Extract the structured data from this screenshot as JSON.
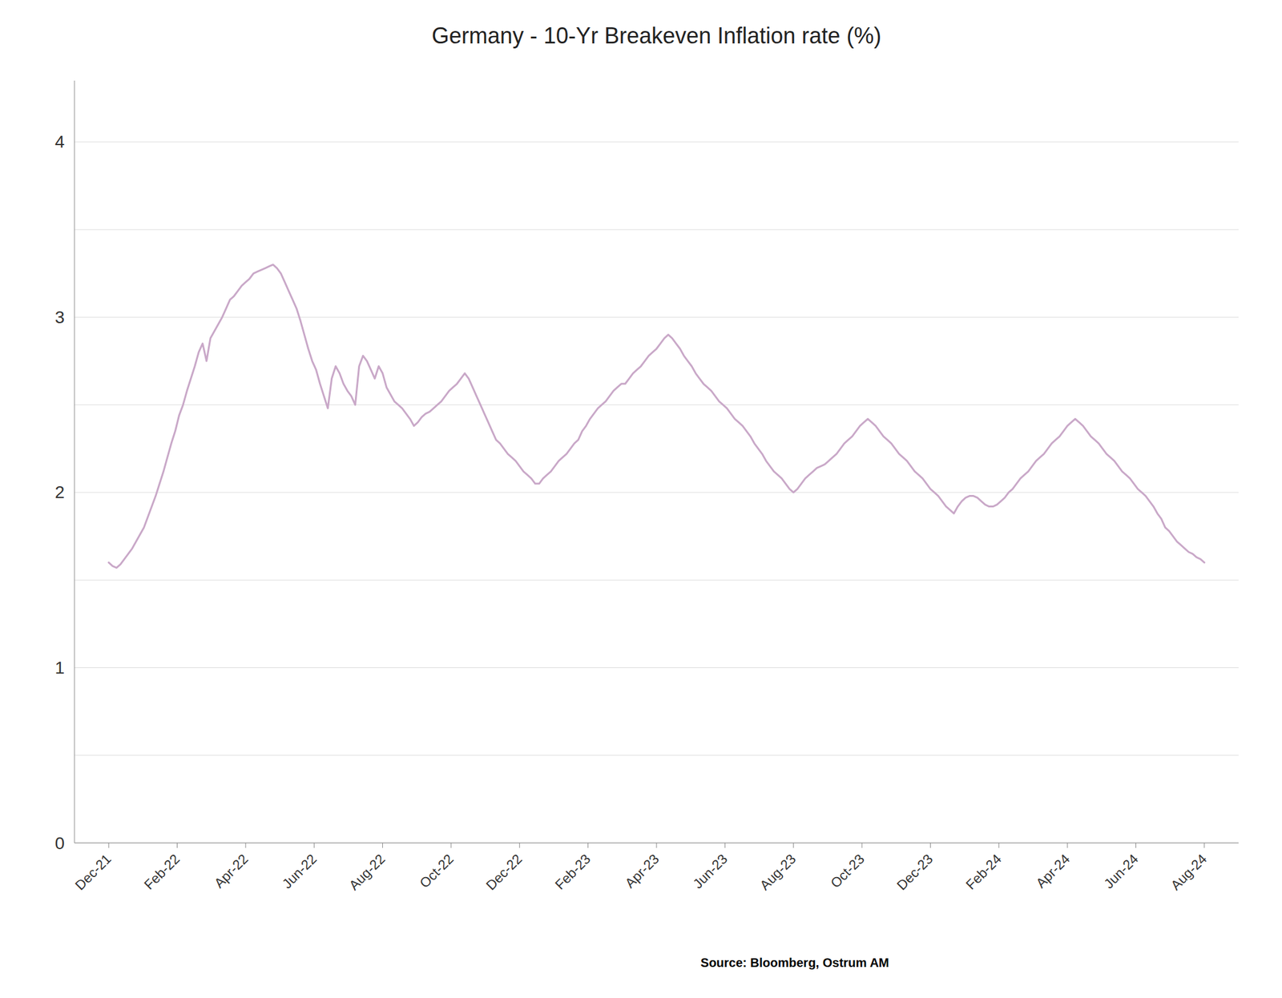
{
  "chart_data": {
    "type": "line",
    "title": "Germany - 10-Yr Breakeven Inflation rate (%)",
    "annotations": [
      "Source: Bloomberg, Ostrum AM"
    ],
    "color": "#c9a8c8",
    "grid": "y",
    "xlim": [
      -0.5,
      16.5
    ],
    "xticks": [
      {
        "value": 0,
        "label": "Dec-21"
      },
      {
        "value": 1,
        "label": "Feb-22"
      },
      {
        "value": 2,
        "label": "Apr-22"
      },
      {
        "value": 3,
        "label": "Jun-22"
      },
      {
        "value": 4,
        "label": "Aug-22"
      },
      {
        "value": 5,
        "label": "Oct-22"
      },
      {
        "value": 6,
        "label": "Dec-22"
      },
      {
        "value": 7,
        "label": "Feb-23"
      },
      {
        "value": 8,
        "label": "Apr-23"
      },
      {
        "value": 9,
        "label": "Jun-23"
      },
      {
        "value": 10,
        "label": "Aug-23"
      },
      {
        "value": 11,
        "label": "Oct-23"
      },
      {
        "value": 12,
        "label": "Dec-23"
      },
      {
        "value": 13,
        "label": "Feb-24"
      },
      {
        "value": 14,
        "label": "Apr-24"
      },
      {
        "value": 15,
        "label": "Jun-24"
      },
      {
        "value": 16,
        "label": "Aug-24"
      }
    ],
    "ylim": [
      0,
      4.35
    ],
    "yticks": [
      0,
      {
        "value": 0.5,
        "label": null
      },
      1,
      {
        "value": 1.5,
        "label": null
      },
      2,
      {
        "value": 2.5,
        "label": null
      },
      3,
      {
        "value": 3.5,
        "label": null
      },
      4
    ],
    "x": [
      0,
      0.057143,
      0.114286,
      0.171429,
      0.228571,
      0.285714,
      0.342857,
      0.4,
      0.457143,
      0.514286,
      0.571429,
      0.628571,
      0.685714,
      0.742857,
      0.8,
      0.857143,
      0.914286,
      0.971429,
      1.028571,
      1.085714,
      1.142857,
      1.2,
      1.257143,
      1.314286,
      1.371429,
      1.428571,
      1.485714,
      1.542857,
      1.6,
      1.657143,
      1.714286,
      1.771429,
      1.828571,
      1.885714,
      1.942857,
      2,
      2.057143,
      2.114286,
      2.171429,
      2.228571,
      2.285714,
      2.342857,
      2.4,
      2.457143,
      2.514286,
      2.571429,
      2.628571,
      2.685714,
      2.742857,
      2.8,
      2.857143,
      2.914286,
      2.971429,
      3.028571,
      3.085714,
      3.142857,
      3.2,
      3.257143,
      3.314286,
      3.371429,
      3.428571,
      3.485714,
      3.542857,
      3.6,
      3.657143,
      3.714286,
      3.771429,
      3.828571,
      3.885714,
      3.942857,
      4,
      4.057143,
      4.114286,
      4.171429,
      4.228571,
      4.285714,
      4.342857,
      4.4,
      4.457143,
      4.514286,
      4.571429,
      4.628571,
      4.685714,
      4.742857,
      4.8,
      4.857143,
      4.914286,
      4.971429,
      5.028571,
      5.085714,
      5.142857,
      5.2,
      5.257143,
      5.314286,
      5.371429,
      5.428571,
      5.485714,
      5.542857,
      5.6,
      5.657143,
      5.714286,
      5.771429,
      5.828571,
      5.885714,
      5.942857,
      6,
      6.057143,
      6.114286,
      6.171429,
      6.228571,
      6.285714,
      6.342857,
      6.4,
      6.457143,
      6.514286,
      6.571429,
      6.628571,
      6.685714,
      6.742857,
      6.8,
      6.857143,
      6.914286,
      6.971429,
      7.028571,
      7.085714,
      7.142857,
      7.2,
      7.257143,
      7.314286,
      7.371429,
      7.428571,
      7.485714,
      7.542857,
      7.6,
      7.657143,
      7.714286,
      7.771429,
      7.828571,
      7.885714,
      7.942857,
      8,
      8.057143,
      8.114286,
      8.171429,
      8.228571,
      8.285714,
      8.342857,
      8.4,
      8.457143,
      8.514286,
      8.571429,
      8.628571,
      8.685714,
      8.742857,
      8.8,
      8.857143,
      8.914286,
      8.971429,
      9.028571,
      9.085714,
      9.142857,
      9.2,
      9.257143,
      9.314286,
      9.371429,
      9.428571,
      9.485714,
      9.542857,
      9.6,
      9.657143,
      9.714286,
      9.771429,
      9.828571,
      9.885714,
      9.942857,
      10,
      10.057143,
      10.114286,
      10.171429,
      10.228571,
      10.285714,
      10.342857,
      10.4,
      10.457143,
      10.514286,
      10.571429,
      10.628571,
      10.685714,
      10.742857,
      10.8,
      10.857143,
      10.914286,
      10.971429,
      11.028571,
      11.085714,
      11.142857,
      11.2,
      11.257143,
      11.314286,
      11.371429,
      11.428571,
      11.485714,
      11.542857,
      11.6,
      11.657143,
      11.714286,
      11.771429,
      11.828571,
      11.885714,
      11.942857,
      12,
      12.057143,
      12.114286,
      12.171429,
      12.228571,
      12.285714,
      12.342857,
      12.4,
      12.457143,
      12.514286,
      12.571429,
      12.628571,
      12.685714,
      12.742857,
      12.8,
      12.857143,
      12.914286,
      12.971429,
      13.028571,
      13.085714,
      13.142857,
      13.2,
      13.257143,
      13.314286,
      13.371429,
      13.428571,
      13.485714,
      13.542857,
      13.6,
      13.657143,
      13.714286,
      13.771429,
      13.828571,
      13.885714,
      13.942857,
      14,
      14.057143,
      14.114286,
      14.171429,
      14.228571,
      14.285714,
      14.342857,
      14.4,
      14.457143,
      14.514286,
      14.571429,
      14.628571,
      14.685714,
      14.742857,
      14.8,
      14.857143,
      14.914286,
      14.971429,
      15.028571,
      15.085714,
      15.142857,
      15.2,
      15.257143,
      15.314286,
      15.371429,
      15.428571,
      15.485714,
      15.542857,
      15.6,
      15.657143,
      15.714286,
      15.771429,
      15.828571,
      15.885714,
      15.942857,
      16
    ],
    "values": [
      1.6,
      1.58,
      1.57,
      1.59,
      1.62,
      1.65,
      1.68,
      1.72,
      1.76,
      1.8,
      1.86,
      1.92,
      1.98,
      2.05,
      2.12,
      2.2,
      2.28,
      2.35,
      2.44,
      2.5,
      2.58,
      2.65,
      2.72,
      2.8,
      2.85,
      2.75,
      2.88,
      2.92,
      2.96,
      3.0,
      3.05,
      3.1,
      3.12,
      3.15,
      3.18,
      3.2,
      3.22,
      3.25,
      3.26,
      3.27,
      3.28,
      3.29,
      3.3,
      3.28,
      3.25,
      3.2,
      3.15,
      3.1,
      3.05,
      2.98,
      2.9,
      2.82,
      2.75,
      2.7,
      2.62,
      2.55,
      2.48,
      2.65,
      2.72,
      2.68,
      2.62,
      2.58,
      2.55,
      2.5,
      2.72,
      2.78,
      2.75,
      2.7,
      2.65,
      2.72,
      2.68,
      2.6,
      2.56,
      2.52,
      2.5,
      2.48,
      2.45,
      2.42,
      2.38,
      2.4,
      2.43,
      2.45,
      2.46,
      2.48,
      2.5,
      2.52,
      2.55,
      2.58,
      2.6,
      2.62,
      2.65,
      2.68,
      2.65,
      2.6,
      2.55,
      2.5,
      2.45,
      2.4,
      2.35,
      2.3,
      2.28,
      2.25,
      2.22,
      2.2,
      2.18,
      2.15,
      2.12,
      2.1,
      2.08,
      2.05,
      2.05,
      2.08,
      2.1,
      2.12,
      2.15,
      2.18,
      2.2,
      2.22,
      2.25,
      2.28,
      2.3,
      2.35,
      2.38,
      2.42,
      2.45,
      2.48,
      2.5,
      2.52,
      2.55,
      2.58,
      2.6,
      2.62,
      2.62,
      2.65,
      2.68,
      2.7,
      2.72,
      2.75,
      2.78,
      2.8,
      2.82,
      2.85,
      2.88,
      2.9,
      2.88,
      2.85,
      2.82,
      2.78,
      2.75,
      2.72,
      2.68,
      2.65,
      2.62,
      2.6,
      2.58,
      2.55,
      2.52,
      2.5,
      2.48,
      2.45,
      2.42,
      2.4,
      2.38,
      2.35,
      2.32,
      2.28,
      2.25,
      2.22,
      2.18,
      2.15,
      2.12,
      2.1,
      2.08,
      2.05,
      2.02,
      2.0,
      2.02,
      2.05,
      2.08,
      2.1,
      2.12,
      2.14,
      2.15,
      2.16,
      2.18,
      2.2,
      2.22,
      2.25,
      2.28,
      2.3,
      2.32,
      2.35,
      2.38,
      2.4,
      2.42,
      2.4,
      2.38,
      2.35,
      2.32,
      2.3,
      2.28,
      2.25,
      2.22,
      2.2,
      2.18,
      2.15,
      2.12,
      2.1,
      2.08,
      2.05,
      2.02,
      2.0,
      1.98,
      1.95,
      1.92,
      1.9,
      1.88,
      1.92,
      1.95,
      1.97,
      1.98,
      1.98,
      1.97,
      1.95,
      1.93,
      1.92,
      1.92,
      1.93,
      1.95,
      1.97,
      2.0,
      2.02,
      2.05,
      2.08,
      2.1,
      2.12,
      2.15,
      2.18,
      2.2,
      2.22,
      2.25,
      2.28,
      2.3,
      2.32,
      2.35,
      2.38,
      2.4,
      2.42,
      2.4,
      2.38,
      2.35,
      2.32,
      2.3,
      2.28,
      2.25,
      2.22,
      2.2,
      2.18,
      2.15,
      2.12,
      2.1,
      2.08,
      2.05,
      2.02,
      2.0,
      1.98,
      1.95,
      1.92,
      1.88,
      1.85,
      1.8,
      1.78,
      1.75,
      1.72,
      1.7,
      1.68,
      1.66,
      1.65,
      1.63,
      1.62,
      1.6
    ]
  }
}
